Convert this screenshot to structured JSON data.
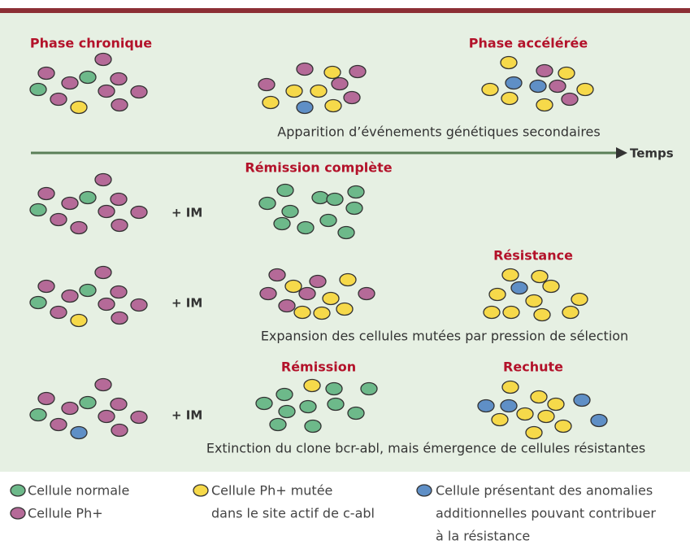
{
  "diagram": {
    "phase_chronique": "Phase chronique",
    "phase_acceleree": "Phase accélérée",
    "note_1": "Apparition d’événements génétiques secondaires",
    "axis_label": "Temps",
    "remission_complete": "Rémission complète",
    "treatment_1": "+ IM",
    "treatment_2": "+ IM",
    "treatment_3": "+ IM",
    "resistance": "Résistance",
    "note_2": "Expansion des cellules mutées par pression de sélection",
    "remission": "Rémission",
    "rechute": "Rechute",
    "note_3": "Extinction du clone bcr-abl, mais émergence de cellules résistantes"
  },
  "legend": {
    "normal": [
      "Cellule normale"
    ],
    "ph": [
      "Cellule Ph+"
    ],
    "mutated": [
      "Cellule Ph+ mutée",
      "dans le site actif de c-abl"
    ],
    "anomalies": [
      "Cellule présentant des anomalies",
      "additionnelles pouvant contribuer",
      "à la résistance"
    ]
  }
}
